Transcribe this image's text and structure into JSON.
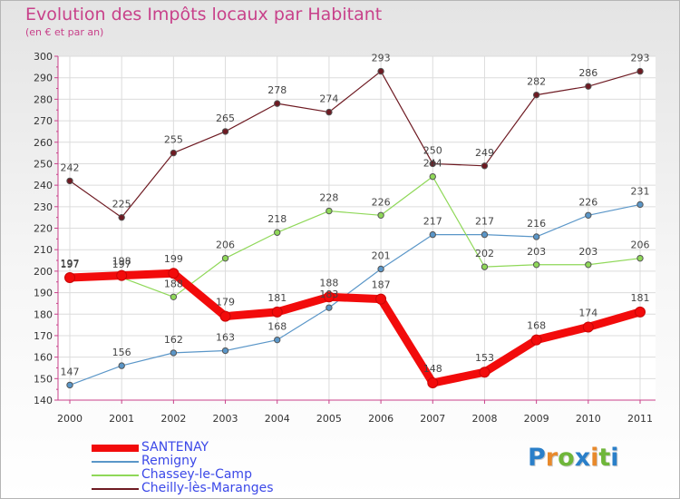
{
  "header": {
    "title": "Evolution des Impôts locaux par Habitant",
    "subtitle": "(en € et par an)"
  },
  "logo": {
    "text": "Proxiti",
    "colors": [
      "#2a7fc9",
      "#e8892b",
      "#6fb63a",
      "#2a7fc9",
      "#e8892b",
      "#6fb63a",
      "#2a7fc9"
    ]
  },
  "chart_data": {
    "type": "line",
    "title": "Evolution des Impôts locaux par Habitant",
    "subtitle": "(en € et par an)",
    "xlabel": "",
    "ylabel": "",
    "ylim": [
      140,
      300
    ],
    "yticks": [
      140,
      150,
      160,
      170,
      180,
      190,
      200,
      210,
      220,
      230,
      240,
      250,
      260,
      270,
      280,
      290,
      300
    ],
    "grid": true,
    "legend_position": "bottom-left",
    "categories": [
      "2000",
      "2001",
      "2002",
      "2003",
      "2004",
      "2005",
      "2006",
      "2007",
      "2008",
      "2009",
      "2010",
      "2011"
    ],
    "series": [
      {
        "name": "Cheilly-lès-Maranges",
        "color": "#6e1a22",
        "values": [
          242,
          225,
          255,
          265,
          278,
          274,
          293,
          250,
          249,
          282,
          286,
          293
        ]
      },
      {
        "name": "Remigny",
        "color": "#5a96c8",
        "values": [
          147,
          156,
          162,
          163,
          168,
          183,
          201,
          217,
          217,
          216,
          226,
          231
        ]
      },
      {
        "name": "Chassey-le-Camp",
        "color": "#8fd858",
        "values": [
          197,
          197,
          188,
          206,
          218,
          228,
          226,
          244,
          202,
          203,
          203,
          206
        ]
      },
      {
        "name": "SANTENAY",
        "color": "#f20b0b",
        "values": [
          197,
          198,
          199,
          179,
          181,
          188,
          187,
          148,
          153,
          168,
          174,
          181
        ]
      }
    ],
    "legend": [
      "SANTENAY",
      "Remigny",
      "Chassey-le-Camp",
      "Cheilly-lès-Maranges"
    ]
  }
}
